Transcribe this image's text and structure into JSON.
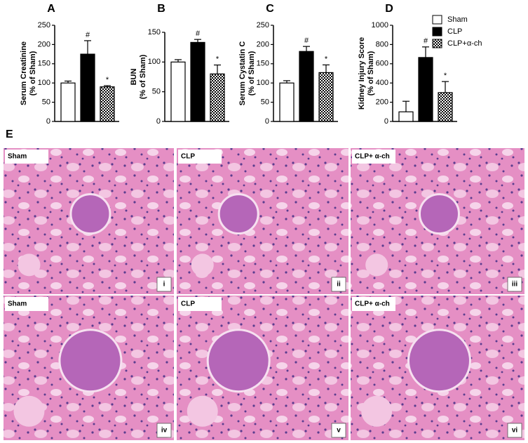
{
  "chart_data": [
    {
      "type": "bar",
      "panel": "A",
      "ylabel": "Serum Creatinine",
      "ylabel2": "(% of Sham)",
      "values": [
        100,
        175,
        90
      ],
      "errors": [
        5,
        35,
        3
      ],
      "markers": [
        null,
        "#",
        "*"
      ],
      "ylim": [
        0,
        250
      ],
      "yticks": [
        0,
        50,
        100,
        150,
        200,
        250
      ]
    },
    {
      "type": "bar",
      "panel": "B",
      "ylabel": "BUN",
      "ylabel2": "(% of Sham)",
      "values": [
        100,
        133,
        80
      ],
      "errors": [
        4,
        5,
        15
      ],
      "markers": [
        null,
        "#",
        "*"
      ],
      "ylim": [
        0,
        150
      ],
      "yticks": [
        0,
        50,
        100,
        150
      ]
    },
    {
      "type": "bar",
      "panel": "C",
      "ylabel": "Serum Cystatin C",
      "ylabel2": "(% of Sham)",
      "values": [
        100,
        182,
        127
      ],
      "errors": [
        6,
        13,
        20
      ],
      "markers": [
        null,
        "#",
        "*"
      ],
      "ylim": [
        0,
        250
      ],
      "yticks": [
        0,
        50,
        100,
        150,
        200,
        250
      ]
    },
    {
      "type": "bar",
      "panel": "D",
      "ylabel": "Kidney Injury Score",
      "ylabel2": "(% of Sham)",
      "values": [
        100,
        665,
        300
      ],
      "errors": [
        110,
        110,
        115
      ],
      "markers": [
        null,
        "#",
        "*"
      ],
      "ylim": [
        0,
        1000
      ],
      "yticks": [
        0,
        200,
        400,
        600,
        800,
        1000
      ]
    }
  ],
  "legend": {
    "entries": [
      {
        "name": "Sham",
        "color": "#ffffff"
      },
      {
        "name": "CLP",
        "color": "#000000"
      },
      {
        "name": "CLP+α-ch",
        "color": "checker"
      }
    ]
  },
  "histology": {
    "panel": "E",
    "images": [
      {
        "label": "Sham",
        "numeral": "i"
      },
      {
        "label": "CLP",
        "numeral": "ii"
      },
      {
        "label": "CLP+ α-ch",
        "numeral": "iii"
      },
      {
        "label": "Sham",
        "numeral": "iv"
      },
      {
        "label": "CLP",
        "numeral": "v"
      },
      {
        "label": "CLP+ α-ch",
        "numeral": "vi"
      }
    ]
  }
}
